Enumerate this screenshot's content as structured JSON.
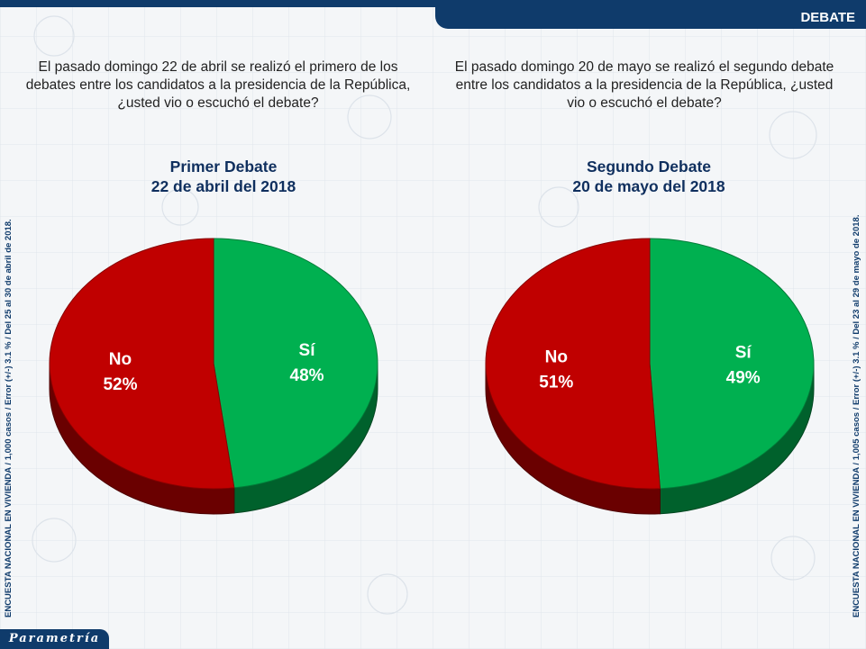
{
  "header": {
    "section_label": "DEBATE"
  },
  "questions": {
    "left": "El pasado domingo 22 de abril se realizó el primero de los debates entre los candidatos a la presidencia de la República, ¿usted vio o escuchó el debate?",
    "right": "El pasado domingo 20 de mayo se realizó el segundo debate entre los candidatos a la presidencia de la República, ¿usted vio o escuchó el debate?"
  },
  "side_notes": {
    "left": "ENCUESTA NACIONAL EN VIVIENDA / 1,000 casos / Error (+/-) 3.1 % / Del 25 al 30 de abril de 2018.",
    "right": "ENCUESTA NACIONAL EN VIVIENDA / 1,005 casos / Error (+/-) 3.1 % / Del 23 al 29 de mayo de 2018."
  },
  "brand": {
    "logo_text": "Parametría"
  },
  "colors": {
    "no": "#c00000",
    "si": "#00b050",
    "navy": "#0f3b6b",
    "title": "#0f2f5e"
  },
  "chart_data": [
    {
      "type": "pie",
      "title_line1": "Primer Debate",
      "title_line2": "22 de abril del 2018",
      "slices": [
        {
          "label": "Sí",
          "value": 48,
          "display": "48%",
          "color": "#00b050"
        },
        {
          "label": "No",
          "value": 52,
          "display": "52%",
          "color": "#c00000"
        }
      ]
    },
    {
      "type": "pie",
      "title_line1": "Segundo Debate",
      "title_line2": "20 de mayo del 2018",
      "slices": [
        {
          "label": "Sí",
          "value": 49,
          "display": "49%",
          "color": "#00b050"
        },
        {
          "label": "No",
          "value": 51,
          "display": "51%",
          "color": "#c00000"
        }
      ]
    }
  ]
}
